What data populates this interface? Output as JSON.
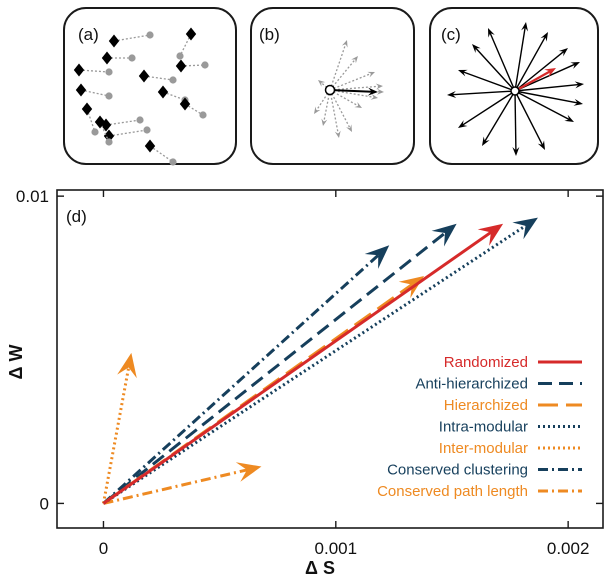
{
  "panels": {
    "a": {
      "label": "(a)"
    },
    "b": {
      "label": "(b)"
    },
    "c": {
      "label": "(c)"
    }
  },
  "chart_data": {
    "type": "line",
    "panel_label": "(d)",
    "xlabel": "Δ S",
    "ylabel": "Δ W",
    "xlim": [
      -0.0002,
      0.00215
    ],
    "ylim": [
      -0.0008,
      0.0102
    ],
    "xticks": [
      0,
      0.001,
      0.002
    ],
    "xtick_labels": [
      "0",
      "0.001",
      "0.002"
    ],
    "yticks": [
      0,
      0.01
    ],
    "ytick_labels": [
      "0",
      "0.01"
    ],
    "grid": false,
    "legend_position": "bottom-right",
    "series": [
      {
        "name": "Randomized",
        "color": "#d62a2a",
        "dash": "solid",
        "x": [
          0,
          0.00172
        ],
        "y": [
          0,
          0.0091
        ]
      },
      {
        "name": "Anti-hierarchized",
        "color": "#163f5c",
        "dash": "dash",
        "x": [
          0,
          0.00152
        ],
        "y": [
          0,
          0.0091
        ]
      },
      {
        "name": "Hierarchized",
        "color": "#ee8a22",
        "dash": "longdash",
        "x": [
          0,
          0.00138
        ],
        "y": [
          0,
          0.0074
        ]
      },
      {
        "name": "Intra-modular",
        "color": "#163f5c",
        "dash": "dot",
        "x": [
          0,
          0.00187
        ],
        "y": [
          0,
          0.0093
        ]
      },
      {
        "name": "Inter-modular",
        "color": "#ee8a22",
        "dash": "dot",
        "x": [
          0,
          0.00012
        ],
        "y": [
          0,
          0.0049
        ]
      },
      {
        "name": "Conserved clustering",
        "color": "#163f5c",
        "dash": "dashdot",
        "x": [
          0,
          0.00123
        ],
        "y": [
          0,
          0.0084
        ]
      },
      {
        "name": "Conserved path length",
        "color": "#ee8a22",
        "dash": "dashdot",
        "x": [
          0,
          0.00068
        ],
        "y": [
          0,
          0.0012
        ]
      }
    ]
  }
}
